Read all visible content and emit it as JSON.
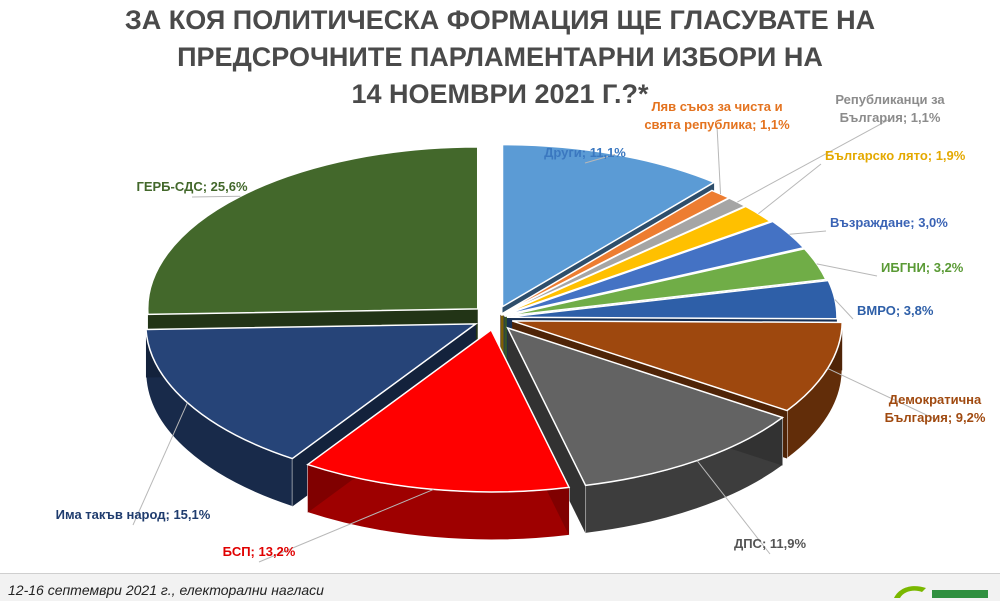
{
  "title_lines": [
    "ЗА КОЯ ПОЛИТИЧЕСКА ФОРМАЦИЯ ЩЕ ГЛАСУВАТЕ НА",
    "ПРЕДСРОЧНИТЕ ПАРЛАМЕНТАРНИ ИЗБОРИ НА",
    "14 НОЕМВРИ 2021 Г.?*"
  ],
  "footer_note": "12-16 септември 2021 г., електорални нагласи",
  "chart_data": {
    "type": "pie",
    "style": "3d-exploded",
    "title": "ЗА КОЯ ПОЛИТИЧЕСКА ФОРМАЦИЯ ЩЕ ГЛАСУВАТЕ НА ПРЕДСРОЧНИТЕ ПАРЛАМЕНТАРНИ ИЗБОРИ НА 14 НОЕМВРИ 2021 Г.?*",
    "unit": "%",
    "slices": [
      {
        "name": "Други",
        "value": 11.1,
        "color": "#5b9bd5",
        "label_lines": [
          "Други; 11,1%"
        ]
      },
      {
        "name": "Ляв съюз за чиста и свята република",
        "value": 1.1,
        "color": "#ed7d31",
        "label_lines": [
          "Ляв съюз за чиста и",
          "свята република; 1,1%"
        ]
      },
      {
        "name": "Републиканци за България",
        "value": 1.1,
        "color": "#a5a5a5",
        "label_lines": [
          "Републиканци за",
          "България; 1,1%"
        ]
      },
      {
        "name": "Българско лято",
        "value": 1.9,
        "color": "#ffc000",
        "label_lines": [
          "Българско лято; 1,9%"
        ]
      },
      {
        "name": "Възраждане",
        "value": 3.0,
        "color": "#4472c4",
        "label_lines": [
          "Възраждане; 3,0%"
        ]
      },
      {
        "name": "ИБГНИ",
        "value": 3.2,
        "color": "#70ad47",
        "label_lines": [
          "ИБГНИ; 3,2%"
        ]
      },
      {
        "name": "ВМРО",
        "value": 3.8,
        "color": "#2e5fa8",
        "label_lines": [
          "ВМРО; 3,8%"
        ]
      },
      {
        "name": "Демократична България",
        "value": 9.2,
        "color": "#9e480e",
        "label_lines": [
          "Демократична",
          "България; 9,2%"
        ]
      },
      {
        "name": "ДПС",
        "value": 11.9,
        "color": "#636363",
        "label_lines": [
          "ДПС; 11,9%"
        ]
      },
      {
        "name": "БСП",
        "value": 13.2,
        "color": "#ff0000",
        "label_lines": [
          "БСП; 13,2%"
        ]
      },
      {
        "name": "Има такъв народ",
        "value": 15.1,
        "color": "#264478",
        "label_lines": [
          "Има такъв народ; 15,1%"
        ]
      },
      {
        "name": "ГЕРБ-СДС",
        "value": 25.6,
        "color": "#43682b",
        "label_lines": [
          "ГЕРБ-СДС; 25,6%"
        ]
      }
    ]
  }
}
